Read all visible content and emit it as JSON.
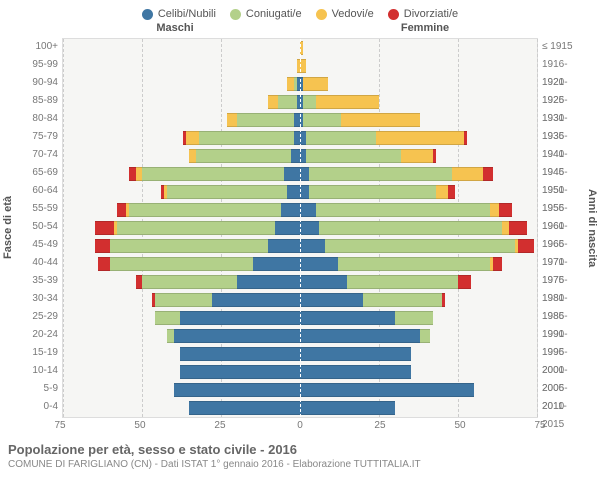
{
  "chart": {
    "type": "population-pyramid",
    "background_color": "#f6f6f4",
    "grid_color": "#cccccc",
    "xmax": 75,
    "xticks": [
      75,
      50,
      25,
      0,
      25,
      50,
      75
    ],
    "left_header": "Maschi",
    "right_header": "Femmine",
    "y_label_left": "Fasce di età",
    "y_label_right": "Anni di nascita",
    "legend": [
      {
        "label": "Celibi/Nubili",
        "color": "#3f76a3"
      },
      {
        "label": "Coniugati/e",
        "color": "#b3d08a"
      },
      {
        "label": "Vedovi/e",
        "color": "#f6c350"
      },
      {
        "label": "Divorziati/e",
        "color": "#d22f2f"
      }
    ],
    "rows": [
      {
        "age": "100+",
        "year": "≤ 1915",
        "m": [
          0,
          0,
          0,
          0
        ],
        "f": [
          0,
          0,
          1,
          0
        ]
      },
      {
        "age": "95-99",
        "year": "1916-1920",
        "m": [
          0,
          0,
          1,
          0
        ],
        "f": [
          0,
          0,
          2,
          0
        ]
      },
      {
        "age": "90-94",
        "year": "1921-1925",
        "m": [
          1,
          1,
          2,
          0
        ],
        "f": [
          1,
          0,
          8,
          0
        ]
      },
      {
        "age": "85-89",
        "year": "1926-1930",
        "m": [
          1,
          6,
          3,
          0
        ],
        "f": [
          1,
          4,
          20,
          0
        ]
      },
      {
        "age": "80-84",
        "year": "1931-1935",
        "m": [
          2,
          18,
          3,
          0
        ],
        "f": [
          1,
          12,
          25,
          0
        ]
      },
      {
        "age": "75-79",
        "year": "1936-1940",
        "m": [
          2,
          30,
          4,
          1
        ],
        "f": [
          2,
          22,
          28,
          1
        ]
      },
      {
        "age": "70-74",
        "year": "1941-1945",
        "m": [
          3,
          30,
          2,
          0
        ],
        "f": [
          2,
          30,
          10,
          1
        ]
      },
      {
        "age": "65-69",
        "year": "1946-1950",
        "m": [
          5,
          45,
          2,
          2
        ],
        "f": [
          3,
          45,
          10,
          3
        ]
      },
      {
        "age": "60-64",
        "year": "1951-1955",
        "m": [
          4,
          38,
          1,
          1
        ],
        "f": [
          3,
          40,
          4,
          2
        ]
      },
      {
        "age": "55-59",
        "year": "1956-1960",
        "m": [
          6,
          48,
          1,
          3
        ],
        "f": [
          5,
          55,
          3,
          4
        ]
      },
      {
        "age": "50-54",
        "year": "1961-1965",
        "m": [
          8,
          50,
          1,
          6
        ],
        "f": [
          6,
          58,
          2,
          6
        ]
      },
      {
        "age": "45-49",
        "year": "1966-1970",
        "m": [
          10,
          50,
          0,
          5
        ],
        "f": [
          8,
          60,
          1,
          5
        ]
      },
      {
        "age": "40-44",
        "year": "1971-1975",
        "m": [
          15,
          45,
          0,
          4
        ],
        "f": [
          12,
          48,
          1,
          3
        ]
      },
      {
        "age": "35-39",
        "year": "1976-1980",
        "m": [
          20,
          30,
          0,
          2
        ],
        "f": [
          15,
          35,
          0,
          4
        ]
      },
      {
        "age": "30-34",
        "year": "1981-1985",
        "m": [
          28,
          18,
          0,
          1
        ],
        "f": [
          20,
          25,
          0,
          1
        ]
      },
      {
        "age": "25-29",
        "year": "1986-1990",
        "m": [
          38,
          8,
          0,
          0
        ],
        "f": [
          30,
          12,
          0,
          0
        ]
      },
      {
        "age": "20-24",
        "year": "1991-1995",
        "m": [
          40,
          2,
          0,
          0
        ],
        "f": [
          38,
          3,
          0,
          0
        ]
      },
      {
        "age": "15-19",
        "year": "1996-2000",
        "m": [
          38,
          0,
          0,
          0
        ],
        "f": [
          35,
          0,
          0,
          0
        ]
      },
      {
        "age": "10-14",
        "year": "2001-2005",
        "m": [
          38,
          0,
          0,
          0
        ],
        "f": [
          35,
          0,
          0,
          0
        ]
      },
      {
        "age": "5-9",
        "year": "2006-2010",
        "m": [
          40,
          0,
          0,
          0
        ],
        "f": [
          55,
          0,
          0,
          0
        ]
      },
      {
        "age": "0-4",
        "year": "2011-2015",
        "m": [
          35,
          0,
          0,
          0
        ],
        "f": [
          30,
          0,
          0,
          0
        ]
      }
    ]
  },
  "footer": {
    "title": "Popolazione per età, sesso e stato civile - 2016",
    "subtitle": "COMUNE DI FARIGLIANO (CN) - Dati ISTAT 1° gennaio 2016 - Elaborazione TUTTITALIA.IT"
  }
}
